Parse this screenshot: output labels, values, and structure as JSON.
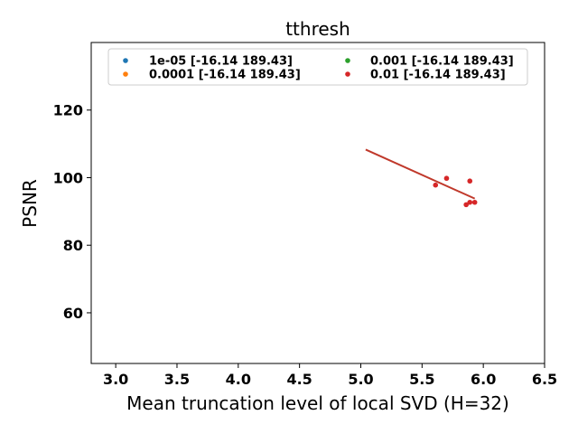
{
  "chart_data": {
    "type": "scatter",
    "title": "tthresh",
    "xlabel": "Mean truncation level of local SVD (H=32)",
    "ylabel": "PSNR",
    "xlim": [
      2.8,
      6.5
    ],
    "ylim": [
      45,
      140
    ],
    "xticks": [
      3.0,
      3.5,
      4.0,
      4.5,
      5.0,
      5.5,
      6.0,
      6.5
    ],
    "yticks": [
      60,
      80,
      100,
      120
    ],
    "xtick_labels": [
      "3.0",
      "3.5",
      "4.0",
      "4.5",
      "5.0",
      "5.5",
      "6.0",
      "6.5"
    ],
    "ytick_labels": [
      "60",
      "80",
      "100",
      "120"
    ],
    "grid": false,
    "legend": {
      "placement": "top",
      "columns": 2
    },
    "series": [
      {
        "name": "1e-05 [-16.14 189.43]",
        "color": "#1f77b4",
        "points": [],
        "fit": []
      },
      {
        "name": "0.0001 [-16.14 189.43]",
        "color": "#ff7f0e",
        "points": [],
        "fit": []
      },
      {
        "name": "0.001 [-16.14 189.43]",
        "color": "#2ca02c",
        "points": [],
        "fit": []
      },
      {
        "name": "0.01 [-16.14 189.43]",
        "color": "#d62728",
        "points": [
          {
            "x": 5.61,
            "y": 97.8
          },
          {
            "x": 5.7,
            "y": 99.8
          },
          {
            "x": 5.86,
            "y": 92.0
          },
          {
            "x": 5.89,
            "y": 99.0
          },
          {
            "x": 5.89,
            "y": 92.7
          },
          {
            "x": 5.93,
            "y": 92.7
          }
        ],
        "fit": [
          {
            "x": 5.04,
            "y": 108.3
          },
          {
            "x": 5.93,
            "y": 93.8
          }
        ]
      }
    ],
    "fit_color": "#c0392b"
  }
}
